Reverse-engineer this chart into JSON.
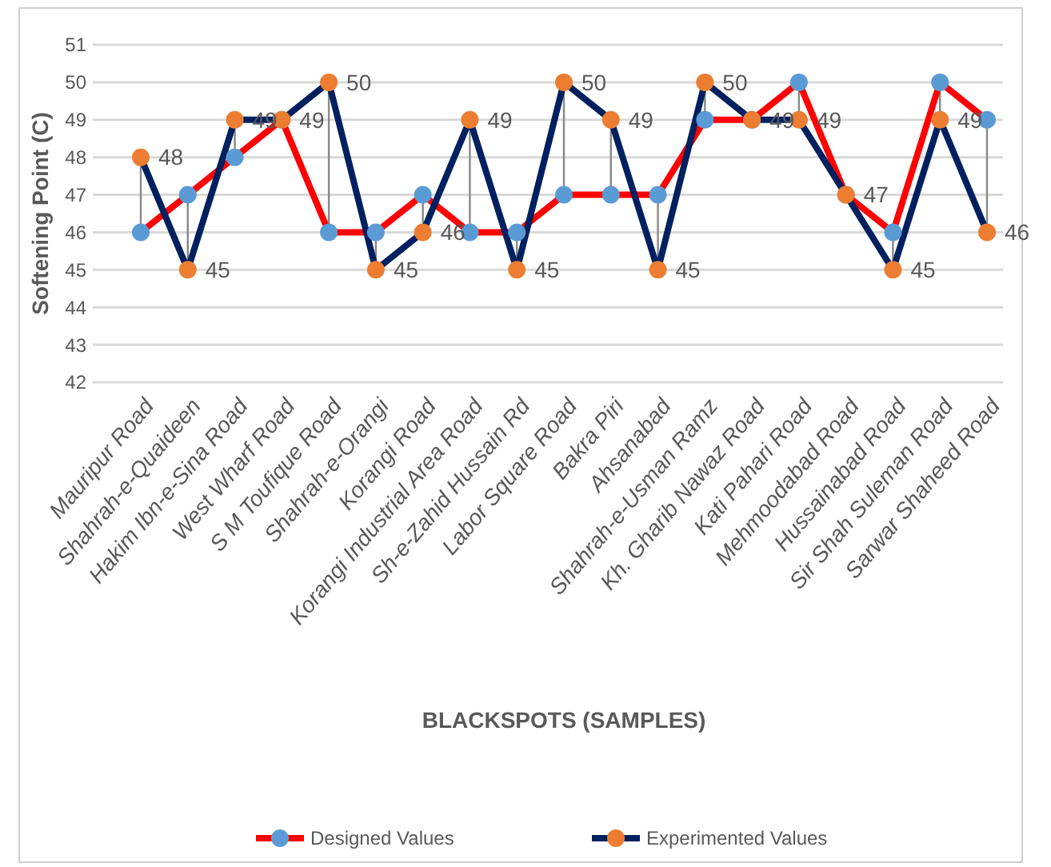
{
  "chart_data": {
    "type": "line",
    "xlabel": "BLACKSPOTS (SAMPLES)",
    "ylabel": "Softening Point (C)",
    "categories": [
      "Mauripur Road",
      "Shahrah-e-Quaideen",
      "Hakim Ibn-e-Sina Road",
      "West Wharf Road",
      "S M Toufique Road",
      "Shahrah-e-Orangi",
      "Korangi Road",
      "Korangi Industrial Area Road",
      "Sh-e-Zahid Hussain Rd",
      "Labor Square Road",
      "Bakra Piri",
      "Ahsanabad",
      "Shahrah-e-Usman Ramz",
      "Kh. Gharib Nawaz Road",
      "Kati Pahari Road",
      "Mehmoodabad Road",
      "Hussainabad Road",
      "Sir Shah Suleman Road",
      "Sarwar Shaheed Road"
    ],
    "series": [
      {
        "name": "Designed Values",
        "color": "#ff0000",
        "colors": [
          "#5b9bd5",
          "#5b9bd5",
          "#5b9bd5",
          "#5b9bd5",
          "#5b9bd5",
          "#5b9bd5",
          "#5b9bd5",
          "#5b9bd5",
          "#5b9bd5",
          "#5b9bd5",
          "#5b9bd5",
          "#5b9bd5",
          "#5b9bd5",
          "#5b9bd5",
          "#5b9bd5",
          "#5b9bd5",
          "#5b9bd5",
          "#5b9bd5",
          "#5b9bd5"
        ],
        "values": [
          46,
          47,
          48,
          49,
          46,
          46,
          47,
          46,
          46,
          47,
          47,
          47,
          49,
          49,
          50,
          47,
          46,
          50,
          49
        ]
      },
      {
        "name": "Experimented Values",
        "color": "#002060",
        "colors": [
          "#ed7d31",
          "#ed7d31",
          "#ed7d31",
          "#ed7d31",
          "#ed7d31",
          "#ed7d31",
          "#ed7d31",
          "#ed7d31",
          "#ed7d31",
          "#ed7d31",
          "#ed7d31",
          "#ed7d31",
          "#ed7d31",
          "#ed7d31",
          "#ed7d31",
          "#ed7d31",
          "#ed7d31",
          "#ed7d31",
          "#ed7d31"
        ],
        "values": [
          48,
          45,
          49,
          49,
          50,
          45,
          46,
          49,
          45,
          50,
          49,
          45,
          50,
          49,
          49,
          47,
          45,
          49,
          46
        ],
        "value_labels": [
          "48",
          "45",
          "49",
          "49",
          "50",
          "45",
          "46",
          "49",
          "45",
          "50",
          "49",
          "45",
          "50",
          "49",
          "49",
          "47",
          "45",
          "49",
          "46"
        ]
      }
    ],
    "ylim": [
      42,
      51
    ],
    "yticks": [
      42,
      43,
      44,
      45,
      46,
      47,
      48,
      49,
      50,
      51
    ],
    "grid": "y",
    "legend": "bottom",
    "marker": "circle",
    "line_style": "solid"
  }
}
